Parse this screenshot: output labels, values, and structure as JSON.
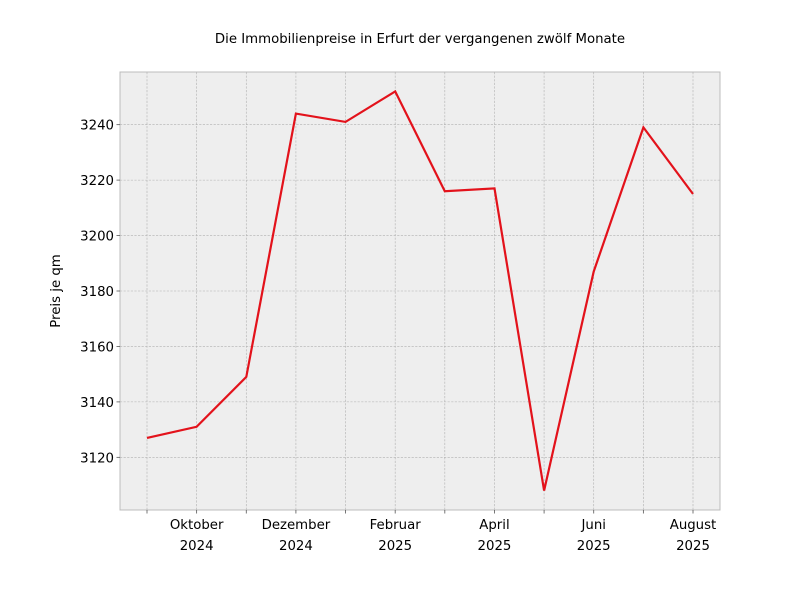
{
  "chart_data": {
    "type": "line",
    "title": "Die Immobilienpreise in Erfurt der vergangenen zwölf Monate",
    "xlabel": "",
    "ylabel": "Preis je qm",
    "x": [
      "2024-09",
      "2024-10",
      "2024-11",
      "2024-12",
      "2025-01",
      "2025-02",
      "2025-03",
      "2025-04",
      "2025-05",
      "2025-06",
      "2025-07",
      "2025-08"
    ],
    "x_tick_labels": [
      {
        "month": "2024-10",
        "line1": "Oktober",
        "line2": "2024"
      },
      {
        "month": "2024-12",
        "line1": "Dezember",
        "line2": "2024"
      },
      {
        "month": "2025-02",
        "line1": "Februar",
        "line2": "2025"
      },
      {
        "month": "2025-04",
        "line1": "April",
        "line2": "2025"
      },
      {
        "month": "2025-06",
        "line1": "Juni",
        "line2": "2025"
      },
      {
        "month": "2025-08",
        "line1": "August",
        "line2": "2025"
      }
    ],
    "series": [
      {
        "values": [
          3127,
          3131,
          3149,
          3244,
          3241,
          3252,
          3216,
          3217,
          3108,
          3187,
          3239,
          3215
        ],
        "color": "#e3121b"
      }
    ],
    "ylim": [
      3101,
      3259
    ],
    "yticks": [
      3120,
      3140,
      3160,
      3180,
      3200,
      3220,
      3240
    ],
    "grid": true,
    "background": "#eeeeee",
    "legend": "none"
  }
}
